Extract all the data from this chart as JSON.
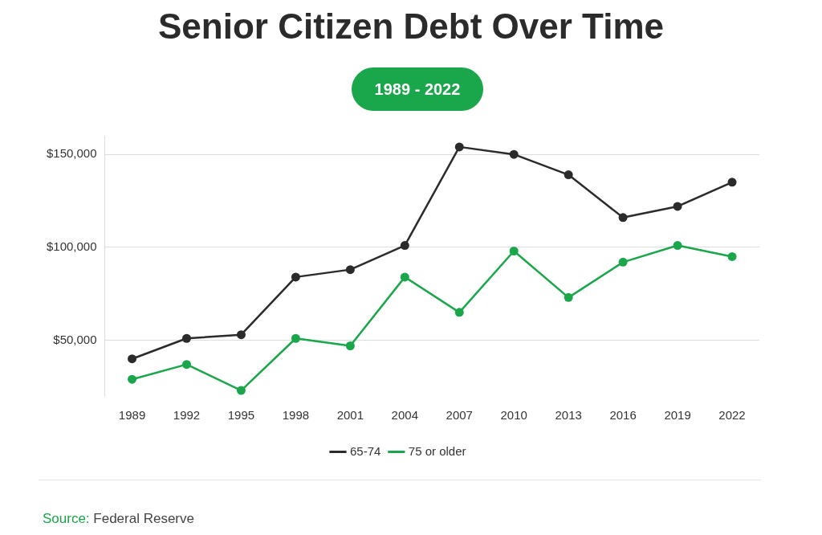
{
  "chart_data": {
    "type": "line",
    "title": "Senior Citizen Debt Over Time",
    "subtitle": "1989 - 2022",
    "categories": [
      "1989",
      "1992",
      "1995",
      "1998",
      "2001",
      "2004",
      "2007",
      "2010",
      "2013",
      "2016",
      "2019",
      "2022"
    ],
    "series": [
      {
        "name": "65-74",
        "color": "#2b2b2b",
        "values": [
          40000,
          51000,
          53000,
          84000,
          88000,
          101000,
          154000,
          150000,
          139000,
          116000,
          122000,
          135000
        ]
      },
      {
        "name": "75 or older",
        "color": "#1aa64a",
        "values": [
          29000,
          37000,
          23000,
          51000,
          47000,
          84000,
          65000,
          98000,
          73000,
          92000,
          101000,
          95000
        ]
      }
    ],
    "ylim": [
      20000,
      160000
    ],
    "yticks": [
      {
        "value": 50000,
        "label": "$50,000"
      },
      {
        "value": 100000,
        "label": "$100,000"
      },
      {
        "value": 150000,
        "label": "$150,000"
      }
    ],
    "grid": "y",
    "legend": "bottom",
    "marker": "circle",
    "line_style": "solid",
    "annotations": [
      "Source: Federal Reserve"
    ]
  }
}
